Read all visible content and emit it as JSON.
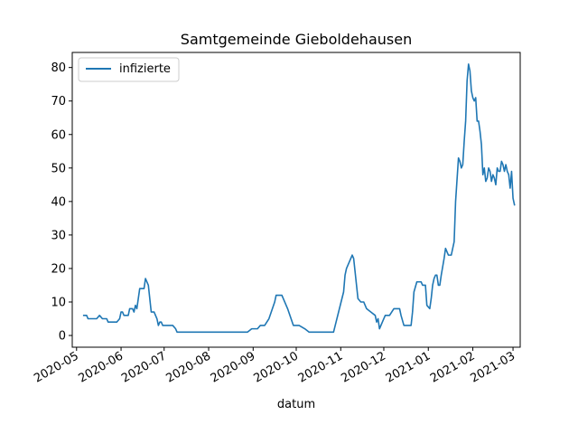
{
  "chart_data": {
    "type": "line",
    "title": "Samtgemeinde Gieboldehausen",
    "xlabel": "datum",
    "ylabel": "",
    "xlim": [
      "2020-04-28",
      "2021-03-06"
    ],
    "ylim": [
      -3.5,
      84.5
    ],
    "grid": false,
    "legend_position": "top-left",
    "x_tick_labels": [
      "2020-05",
      "2020-06",
      "2020-07",
      "2020-08",
      "2020-09",
      "2020-10",
      "2020-11",
      "2020-12",
      "2021-01",
      "2021-02",
      "2021-03"
    ],
    "y_ticks": [
      0,
      10,
      20,
      30,
      40,
      50,
      60,
      70,
      80
    ],
    "series": [
      {
        "name": "infizierte",
        "color": "#1f77b4",
        "points": [
          [
            "2020-05-06",
            6
          ],
          [
            "2020-05-08",
            6
          ],
          [
            "2020-05-09",
            5
          ],
          [
            "2020-05-15",
            5
          ],
          [
            "2020-05-17",
            6
          ],
          [
            "2020-05-19",
            5
          ],
          [
            "2020-05-22",
            5
          ],
          [
            "2020-05-23",
            4
          ],
          [
            "2020-05-29",
            4
          ],
          [
            "2020-05-31",
            5
          ],
          [
            "2020-06-01",
            7
          ],
          [
            "2020-06-02",
            7
          ],
          [
            "2020-06-03",
            6
          ],
          [
            "2020-06-06",
            6
          ],
          [
            "2020-06-07",
            8
          ],
          [
            "2020-06-09",
            8
          ],
          [
            "2020-06-10",
            7
          ],
          [
            "2020-06-11",
            9
          ],
          [
            "2020-06-12",
            8
          ],
          [
            "2020-06-13",
            11
          ],
          [
            "2020-06-14",
            14
          ],
          [
            "2020-06-17",
            14
          ],
          [
            "2020-06-18",
            17
          ],
          [
            "2020-06-20",
            15
          ],
          [
            "2020-06-22",
            7
          ],
          [
            "2020-06-24",
            7
          ],
          [
            "2020-06-26",
            5
          ],
          [
            "2020-06-27",
            3
          ],
          [
            "2020-06-28",
            4
          ],
          [
            "2020-06-29",
            4
          ],
          [
            "2020-06-30",
            3
          ],
          [
            "2020-07-07",
            3
          ],
          [
            "2020-07-09",
            2
          ],
          [
            "2020-07-10",
            1
          ],
          [
            "2020-08-28",
            1
          ],
          [
            "2020-08-31",
            2
          ],
          [
            "2020-09-04",
            2
          ],
          [
            "2020-09-06",
            3
          ],
          [
            "2020-09-09",
            3
          ],
          [
            "2020-09-12",
            5
          ],
          [
            "2020-09-16",
            10
          ],
          [
            "2020-09-17",
            12
          ],
          [
            "2020-09-21",
            12
          ],
          [
            "2020-09-25",
            8
          ],
          [
            "2020-09-29",
            3
          ],
          [
            "2020-10-03",
            3
          ],
          [
            "2020-10-07",
            2
          ],
          [
            "2020-10-10",
            1
          ],
          [
            "2020-10-27",
            1
          ],
          [
            "2020-11-03",
            13
          ],
          [
            "2020-11-04",
            18
          ],
          [
            "2020-11-05",
            20
          ],
          [
            "2020-11-07",
            22
          ],
          [
            "2020-11-09",
            24
          ],
          [
            "2020-11-10",
            23
          ],
          [
            "2020-11-13",
            11
          ],
          [
            "2020-11-15",
            10
          ],
          [
            "2020-11-17",
            10
          ],
          [
            "2020-11-19",
            8
          ],
          [
            "2020-11-22",
            7
          ],
          [
            "2020-11-25",
            6
          ],
          [
            "2020-11-26",
            4
          ],
          [
            "2020-11-27",
            5
          ],
          [
            "2020-11-28",
            2
          ],
          [
            "2020-11-30",
            4
          ],
          [
            "2020-12-02",
            6
          ],
          [
            "2020-12-05",
            6
          ],
          [
            "2020-12-08",
            8
          ],
          [
            "2020-12-12",
            8
          ],
          [
            "2020-12-13",
            6
          ],
          [
            "2020-12-15",
            3
          ],
          [
            "2020-12-20",
            3
          ],
          [
            "2020-12-21",
            7
          ],
          [
            "2020-12-22",
            13
          ],
          [
            "2020-12-24",
            16
          ],
          [
            "2020-12-27",
            16
          ],
          [
            "2020-12-28",
            15
          ],
          [
            "2020-12-30",
            15
          ],
          [
            "2020-12-31",
            9
          ],
          [
            "2021-01-02",
            8
          ],
          [
            "2021-01-03",
            11
          ],
          [
            "2021-01-04",
            15
          ],
          [
            "2021-01-05",
            17
          ],
          [
            "2021-01-06",
            18
          ],
          [
            "2021-01-07",
            18
          ],
          [
            "2021-01-08",
            15
          ],
          [
            "2021-01-09",
            15
          ],
          [
            "2021-01-10",
            18
          ],
          [
            "2021-01-12",
            23
          ],
          [
            "2021-01-13",
            26
          ],
          [
            "2021-01-14",
            25
          ],
          [
            "2021-01-15",
            24
          ],
          [
            "2021-01-17",
            24
          ],
          [
            "2021-01-18",
            26
          ],
          [
            "2021-01-19",
            28
          ],
          [
            "2021-01-20",
            40
          ],
          [
            "2021-01-22",
            53
          ],
          [
            "2021-01-23",
            52
          ],
          [
            "2021-01-24",
            50
          ],
          [
            "2021-01-25",
            51
          ],
          [
            "2021-01-26",
            58
          ],
          [
            "2021-01-27",
            64
          ],
          [
            "2021-01-28",
            76
          ],
          [
            "2021-01-29",
            81
          ],
          [
            "2021-01-30",
            79
          ],
          [
            "2021-01-31",
            73
          ],
          [
            "2021-02-01",
            71
          ],
          [
            "2021-02-02",
            70
          ],
          [
            "2021-02-03",
            71
          ],
          [
            "2021-02-04",
            64
          ],
          [
            "2021-02-05",
            64
          ],
          [
            "2021-02-06",
            61
          ],
          [
            "2021-02-07",
            57
          ],
          [
            "2021-02-08",
            48
          ],
          [
            "2021-02-09",
            50
          ],
          [
            "2021-02-10",
            46
          ],
          [
            "2021-02-11",
            47
          ],
          [
            "2021-02-12",
            50
          ],
          [
            "2021-02-13",
            49
          ],
          [
            "2021-02-14",
            46
          ],
          [
            "2021-02-15",
            48
          ],
          [
            "2021-02-16",
            47
          ],
          [
            "2021-02-17",
            45
          ],
          [
            "2021-02-18",
            50
          ],
          [
            "2021-02-19",
            49
          ],
          [
            "2021-02-20",
            49
          ],
          [
            "2021-02-21",
            52
          ],
          [
            "2021-02-22",
            51
          ],
          [
            "2021-02-23",
            49
          ],
          [
            "2021-02-24",
            51
          ],
          [
            "2021-02-25",
            49
          ],
          [
            "2021-02-26",
            48
          ],
          [
            "2021-02-27",
            44
          ],
          [
            "2021-02-28",
            49
          ],
          [
            "2021-03-01",
            41
          ],
          [
            "2021-03-02",
            39
          ]
        ]
      }
    ]
  }
}
